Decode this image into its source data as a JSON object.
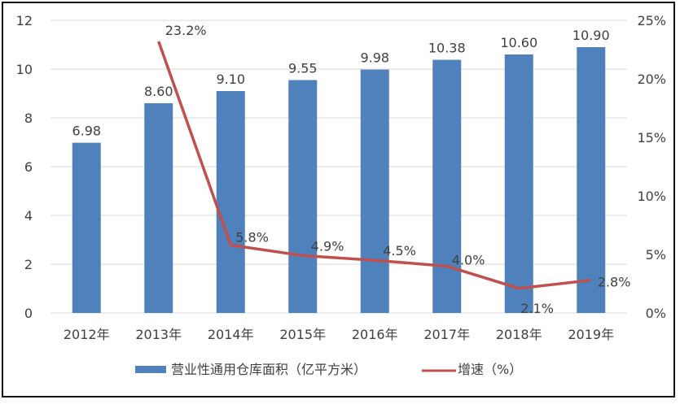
{
  "chart_data": {
    "type": "bar+line",
    "title": "",
    "categories": [
      "2012年",
      "2013年",
      "2014年",
      "2015年",
      "2016年",
      "2017年",
      "2018年",
      "2019年"
    ],
    "series": [
      {
        "name": "营业性通用仓库面积（亿平方米）",
        "type": "bar",
        "axis": "left",
        "values": [
          6.98,
          8.6,
          9.1,
          9.55,
          9.98,
          10.38,
          10.6,
          10.9
        ],
        "labels": [
          "6.98",
          "8.60",
          "9.10",
          "9.55",
          "9.98",
          "10.38",
          "10.60",
          "10.90"
        ],
        "color": "#4F81BD"
      },
      {
        "name": "增速（%）",
        "type": "line",
        "axis": "right",
        "values": [
          null,
          23.2,
          5.8,
          4.9,
          4.5,
          4.0,
          2.1,
          2.8
        ],
        "labels": [
          "",
          "23.2%",
          "5.8%",
          "4.9%",
          "4.5%",
          "4.0%",
          "2.1%",
          "2.8%"
        ],
        "color": "#C0504D"
      }
    ],
    "left_axis": {
      "ticks": [
        "0",
        "2",
        "4",
        "6",
        "8",
        "10",
        "12"
      ],
      "ylim": [
        0,
        12
      ]
    },
    "right_axis": {
      "ticks": [
        "0%",
        "5%",
        "10%",
        "15%",
        "20%",
        "25%"
      ],
      "ylim": [
        0,
        25
      ]
    },
    "grid": true,
    "legend_position": "bottom"
  },
  "legend": {
    "bar_label": "营业性通用仓库面积（亿平方米）",
    "line_label": "增速（%）"
  }
}
